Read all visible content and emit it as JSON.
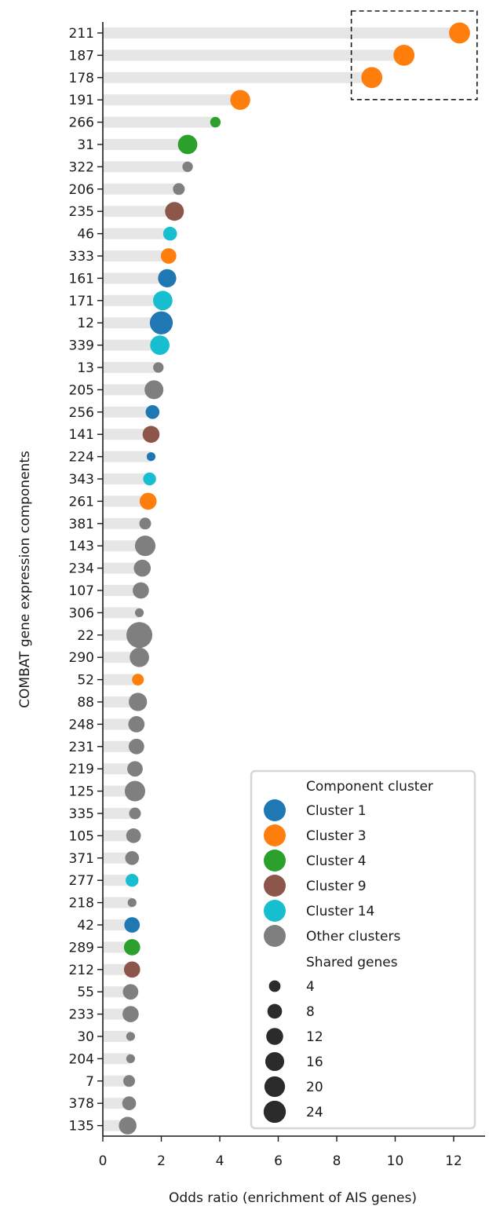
{
  "chart_data": {
    "type": "lollipop",
    "xlabel": "Odds ratio (enrichment of AIS genes)",
    "ylabel": "COMBAT gene expression components",
    "xlim": [
      0,
      12.9
    ],
    "xticks": [
      0,
      2,
      4,
      6,
      8,
      10,
      12
    ],
    "colors": {
      "Cluster 1": "#1f77b4",
      "Cluster 3": "#ff7f0e",
      "Cluster 4": "#2ca02c",
      "Cluster 9": "#8c564b",
      "Cluster 14": "#17becf",
      "Other clusters": "#7f7f7f",
      "bar": "#e6e6e6"
    },
    "points": [
      {
        "component": "211",
        "odds_ratio": 12.2,
        "cluster": "Cluster 3",
        "shared_genes": 16
      },
      {
        "component": "187",
        "odds_ratio": 10.3,
        "cluster": "Cluster 3",
        "shared_genes": 16
      },
      {
        "component": "178",
        "odds_ratio": 9.2,
        "cluster": "Cluster 3",
        "shared_genes": 16
      },
      {
        "component": "191",
        "odds_ratio": 4.7,
        "cluster": "Cluster 3",
        "shared_genes": 14
      },
      {
        "component": "266",
        "odds_ratio": 3.85,
        "cluster": "Cluster 4",
        "shared_genes": 2
      },
      {
        "component": "31",
        "odds_ratio": 2.9,
        "cluster": "Cluster 4",
        "shared_genes": 13
      },
      {
        "component": "322",
        "odds_ratio": 2.9,
        "cluster": "Other clusters",
        "shared_genes": 2
      },
      {
        "component": "206",
        "odds_ratio": 2.6,
        "cluster": "Other clusters",
        "shared_genes": 3
      },
      {
        "component": "235",
        "odds_ratio": 2.45,
        "cluster": "Cluster 9",
        "shared_genes": 12
      },
      {
        "component": "46",
        "odds_ratio": 2.3,
        "cluster": "Cluster 14",
        "shared_genes": 5
      },
      {
        "component": "333",
        "odds_ratio": 2.25,
        "cluster": "Cluster 3",
        "shared_genes": 7
      },
      {
        "component": "161",
        "odds_ratio": 2.2,
        "cluster": "Cluster 1",
        "shared_genes": 11
      },
      {
        "component": "171",
        "odds_ratio": 2.05,
        "cluster": "Cluster 14",
        "shared_genes": 13
      },
      {
        "component": "12",
        "odds_ratio": 2.0,
        "cluster": "Cluster 1",
        "shared_genes": 20
      },
      {
        "component": "339",
        "odds_ratio": 1.95,
        "cluster": "Cluster 14",
        "shared_genes": 13
      },
      {
        "component": "13",
        "odds_ratio": 1.9,
        "cluster": "Other clusters",
        "shared_genes": 2
      },
      {
        "component": "205",
        "odds_ratio": 1.75,
        "cluster": "Other clusters",
        "shared_genes": 12
      },
      {
        "component": "256",
        "odds_ratio": 1.7,
        "cluster": "Cluster 1",
        "shared_genes": 5
      },
      {
        "component": "141",
        "odds_ratio": 1.65,
        "cluster": "Cluster 9",
        "shared_genes": 9
      },
      {
        "component": "224",
        "odds_ratio": 1.65,
        "cluster": "Cluster 1",
        "shared_genes": 1
      },
      {
        "component": "343",
        "odds_ratio": 1.6,
        "cluster": "Cluster 14",
        "shared_genes": 4
      },
      {
        "component": "261",
        "odds_ratio": 1.55,
        "cluster": "Cluster 3",
        "shared_genes": 9
      },
      {
        "component": "381",
        "odds_ratio": 1.45,
        "cluster": "Other clusters",
        "shared_genes": 3
      },
      {
        "component": "143",
        "odds_ratio": 1.45,
        "cluster": "Other clusters",
        "shared_genes": 15
      },
      {
        "component": "234",
        "odds_ratio": 1.35,
        "cluster": "Other clusters",
        "shared_genes": 9
      },
      {
        "component": "107",
        "odds_ratio": 1.3,
        "cluster": "Other clusters",
        "shared_genes": 8
      },
      {
        "component": "306",
        "odds_ratio": 1.25,
        "cluster": "Other clusters",
        "shared_genes": 1
      },
      {
        "component": "22",
        "odds_ratio": 1.25,
        "cluster": "Other clusters",
        "shared_genes": 27
      },
      {
        "component": "290",
        "odds_ratio": 1.25,
        "cluster": "Other clusters",
        "shared_genes": 13
      },
      {
        "component": "52",
        "odds_ratio": 1.2,
        "cluster": "Cluster 3",
        "shared_genes": 3
      },
      {
        "component": "88",
        "odds_ratio": 1.2,
        "cluster": "Other clusters",
        "shared_genes": 11
      },
      {
        "component": "248",
        "odds_ratio": 1.15,
        "cluster": "Other clusters",
        "shared_genes": 8
      },
      {
        "component": "231",
        "odds_ratio": 1.15,
        "cluster": "Other clusters",
        "shared_genes": 7
      },
      {
        "component": "219",
        "odds_ratio": 1.1,
        "cluster": "Other clusters",
        "shared_genes": 7
      },
      {
        "component": "125",
        "odds_ratio": 1.1,
        "cluster": "Other clusters",
        "shared_genes": 15
      },
      {
        "component": "335",
        "odds_ratio": 1.1,
        "cluster": "Other clusters",
        "shared_genes": 3
      },
      {
        "component": "105",
        "odds_ratio": 1.05,
        "cluster": "Other clusters",
        "shared_genes": 6
      },
      {
        "component": "371",
        "odds_ratio": 1.0,
        "cluster": "Other clusters",
        "shared_genes": 5
      },
      {
        "component": "277",
        "odds_ratio": 1.0,
        "cluster": "Cluster 14",
        "shared_genes": 4
      },
      {
        "component": "218",
        "odds_ratio": 1.0,
        "cluster": "Other clusters",
        "shared_genes": 1
      },
      {
        "component": "42",
        "odds_ratio": 1.0,
        "cluster": "Cluster 1",
        "shared_genes": 7
      },
      {
        "component": "289",
        "odds_ratio": 1.0,
        "cluster": "Cluster 4",
        "shared_genes": 8
      },
      {
        "component": "212",
        "odds_ratio": 1.0,
        "cluster": "Cluster 9",
        "shared_genes": 8
      },
      {
        "component": "55",
        "odds_ratio": 0.95,
        "cluster": "Other clusters",
        "shared_genes": 7
      },
      {
        "component": "233",
        "odds_ratio": 0.95,
        "cluster": "Other clusters",
        "shared_genes": 8
      },
      {
        "component": "30",
        "odds_ratio": 0.95,
        "cluster": "Other clusters",
        "shared_genes": 1
      },
      {
        "component": "204",
        "odds_ratio": 0.95,
        "cluster": "Other clusters",
        "shared_genes": 1
      },
      {
        "component": "7",
        "odds_ratio": 0.9,
        "cluster": "Other clusters",
        "shared_genes": 3
      },
      {
        "component": "378",
        "odds_ratio": 0.9,
        "cluster": "Other clusters",
        "shared_genes": 5
      },
      {
        "component": "135",
        "odds_ratio": 0.85,
        "cluster": "Other clusters",
        "shared_genes": 10
      }
    ],
    "highlight_box": {
      "x_range": [
        8.5,
        12.8
      ],
      "components": [
        "211",
        "187",
        "178"
      ]
    },
    "legend": {
      "position": "lower-right",
      "cluster_title": "Component cluster",
      "cluster_entries": [
        "Cluster 1",
        "Cluster 3",
        "Cluster 4",
        "Cluster 9",
        "Cluster 14",
        "Other clusters"
      ],
      "size_title": "Shared genes",
      "size_entries": [
        "4",
        "8",
        "12",
        "16",
        "20",
        "24"
      ]
    }
  }
}
